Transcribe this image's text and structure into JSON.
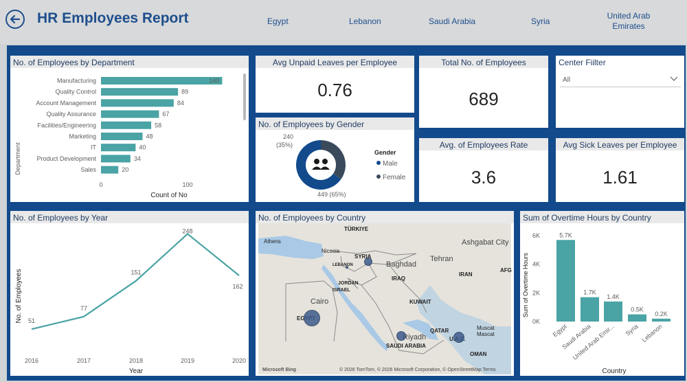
{
  "header": {
    "title": "HR Employees Report",
    "tabs": [
      "Egypt",
      "Lebanon",
      "Saudi Arabia",
      "Syria",
      "United Arab Emirates"
    ]
  },
  "kpis": {
    "unpaid": {
      "title": "Avg Unpaid Leaves per Employee",
      "value": "0.76"
    },
    "total": {
      "title": "Total No. of Employees",
      "value": "689"
    },
    "rate": {
      "title": "Avg. of Employees Rate",
      "value": "3.6"
    },
    "sick": {
      "title": "Avg Sick Leaves per Employee",
      "value": "1.61"
    }
  },
  "slicer": {
    "title": "Center Fiilter",
    "value": "All"
  },
  "department_chart": {
    "title": "No. of Employees by Department",
    "xlabel": "Count of No",
    "ylabel": "Department",
    "ticks": [
      "0",
      "100"
    ]
  },
  "gender_chart": {
    "title": "No. of Employees by Gender",
    "legend_title": "Gender",
    "legend": [
      "Male",
      "Female"
    ],
    "label_female": "240",
    "label_female_pct": "(35%)",
    "label_male": "449 (65%)"
  },
  "year_chart": {
    "title": "No. of Employees by Year",
    "xlabel": "Year",
    "ylabel": "No. of Employees"
  },
  "country_map": {
    "title": "No. of Employees by Country",
    "labels": [
      "TÜRKIYE",
      "Athens",
      "Nicosia",
      "SYRIA",
      "LEBANON",
      "Baghdad",
      "IRAQ",
      "Tehran",
      "Ashgabat City",
      "IRAN",
      "AFG",
      "JORDAN",
      "ISRAEL",
      "Cairo",
      "KUWAIT",
      "EGYPT",
      "QATAR",
      "Riyadh",
      "SAUDI ARABIA",
      "U.A.E.",
      "Muscat",
      "Mascat",
      "OMAN"
    ],
    "attribution": "© 2026 TomTom, © 2026 Microsoft Corporation, © OpenStreetMap  Terms",
    "brand": "Microsoft Bing"
  },
  "overtime_chart": {
    "title": "Sum of Overtime Hours by Country",
    "xlabel": "Country",
    "ylabel": "Sum of Overtime Hours",
    "yticks": [
      "0K",
      "2K",
      "4K",
      "6K"
    ],
    "category_labels": [
      "Egypt",
      "Saudi Arabia",
      "United Arab Emir...",
      "Syria",
      "Lebanon"
    ]
  },
  "colors": {
    "teal": "#4aa3a4",
    "navy": "#124a8c",
    "dark": "#2d3e50",
    "title_blue": "#1f4e8c"
  },
  "chart_data": [
    {
      "type": "bar",
      "title": "No. of Employees by Department",
      "orientation": "horizontal",
      "categories": [
        "Manufacturing",
        "Quality Control",
        "Account Management",
        "Quality Assurance",
        "Facilities/Engineering",
        "Marketing",
        "IT",
        "Product Development",
        "Sales"
      ],
      "values": [
        140,
        89,
        84,
        67,
        58,
        48,
        40,
        34,
        20
      ],
      "xlabel": "Count of No",
      "ylabel": "Department",
      "xlim": [
        0,
        160
      ]
    },
    {
      "type": "pie",
      "title": "No. of Employees by Gender",
      "categories": [
        "Male",
        "Female"
      ],
      "values": [
        449,
        240
      ],
      "labels": [
        "449 (65%)",
        "240 (35%)"
      ]
    },
    {
      "type": "line",
      "title": "No. of Employees by Year",
      "x": [
        "2016",
        "2017",
        "2018",
        "2019",
        "2020"
      ],
      "values": [
        51,
        77,
        151,
        248,
        162
      ],
      "xlabel": "Year",
      "ylabel": "No. of Employees",
      "ylim": [
        0,
        260
      ]
    },
    {
      "type": "bar",
      "title": "Sum of Overtime Hours by Country",
      "categories": [
        "Egypt",
        "Saudi Arabia",
        "United Arab Emirates",
        "Syria",
        "Lebanon"
      ],
      "values": [
        5700,
        1700,
        1400,
        500,
        200
      ],
      "labels": [
        "5.7K",
        "1.7K",
        "1.4K",
        "0.5K",
        "0.2K"
      ],
      "xlabel": "Country",
      "ylabel": "Sum of Overtime Hours",
      "ylim": [
        0,
        6000
      ]
    }
  ]
}
